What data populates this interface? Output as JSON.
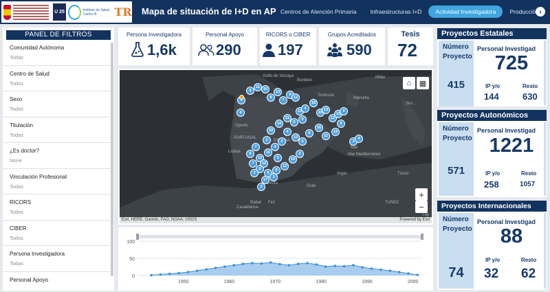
{
  "header": {
    "title": "Mapa de situación de I+D en AP",
    "logos": {
      "u25": "U 25",
      "institute": "Instituto de Salud Carlos III",
      "tr": "TR"
    },
    "nav": [
      {
        "label": "Centros de Atención Primaria",
        "active": false
      },
      {
        "label": "Infraestructuras I+D",
        "active": false
      },
      {
        "label": "Actividad Investigadora",
        "active": true
      },
      {
        "label": "Producción",
        "active": false
      }
    ],
    "accent": "#3fa6e0",
    "bar_color": "#13335f"
  },
  "filters": {
    "title": "PANEL DE FILTROS",
    "items": [
      {
        "label": "Comunidad Autónoma",
        "value": "Todas"
      },
      {
        "label": "Centro de Salud",
        "value": "Todos"
      },
      {
        "label": "Sexo",
        "value": "Todos"
      },
      {
        "label": "Titulación",
        "value": "Todas"
      },
      {
        "label": "¿Es doctor?",
        "value": "None"
      },
      {
        "label": "Vinculación Profesional",
        "value": "Todas"
      },
      {
        "label": "RICORS",
        "value": "Todos"
      },
      {
        "label": "CIBER",
        "value": "Todos"
      },
      {
        "label": "Persona Investigadora",
        "value": "Todas"
      },
      {
        "label": "Personal Apoyo",
        "value": ""
      }
    ]
  },
  "kpis": [
    {
      "label": "Persona Investigadora",
      "value": "1,6k",
      "icon": "flask-icon"
    },
    {
      "label": "Personal Apoyo",
      "value": "290",
      "icon": "people-icon"
    },
    {
      "label": "RICORS o CIBER",
      "value": "197",
      "icon": "user-icon"
    },
    {
      "label": "Grupos Acreditados",
      "value": "590",
      "icon": "group-icon"
    },
    {
      "label": "Tesis",
      "value": "72"
    }
  ],
  "map": {
    "labels": [
      "Burdeos",
      "Toulouse",
      "Marsella",
      "Milán",
      "Oporto",
      "Lisboa",
      "Mar Mediterráneo",
      "Argel",
      "Túnez",
      "Rabat",
      "Casablanca",
      "Fez",
      "Orán",
      "Ceuta",
      "PORTUGAL",
      "ESPAÑA",
      "Mar",
      "Trip",
      "Golfo de Vizcaya",
      "TUNEZ",
      "Sici..."
    ],
    "attribution": "Esri, HERE, Garmin, FAO, NOAA, USGS",
    "powered": "Powered by Esri",
    "clusters": [
      "3",
      "9",
      "11",
      "10",
      "8",
      "13",
      "7",
      "9",
      "12",
      "12",
      "4",
      "18",
      "15",
      "13",
      "12",
      "10",
      "9",
      "8",
      "14",
      "11",
      "16",
      "6",
      "5",
      "13",
      "4",
      "2",
      "4",
      "11",
      "12",
      "7",
      "6",
      "8",
      "9",
      "13",
      "10",
      "2",
      "7",
      "1",
      "4",
      "22",
      "14",
      "21",
      "6",
      "5",
      "3",
      "4",
      "12",
      "5",
      "5",
      "17",
      "3",
      "3",
      "3"
    ],
    "zoom_in": "+",
    "zoom_out": "−"
  },
  "timeline": {
    "x_ticks": [
      "1950",
      "1960",
      "1970",
      "1980",
      "1990",
      "2000"
    ],
    "y_ticks": [
      "100",
      "50",
      "0"
    ]
  },
  "chart_data": {
    "type": "area",
    "x": [
      1943,
      1945,
      1947,
      1949,
      1951,
      1953,
      1955,
      1957,
      1959,
      1961,
      1963,
      1965,
      1967,
      1969,
      1971,
      1973,
      1975,
      1977,
      1979,
      1981,
      1983,
      1985,
      1987,
      1989,
      1991,
      1993,
      1995,
      1997,
      1999,
      2001
    ],
    "values": [
      1,
      3,
      5,
      7,
      10,
      14,
      18,
      22,
      26,
      30,
      34,
      36,
      35,
      38,
      33,
      30,
      34,
      36,
      32,
      26,
      28,
      27,
      30,
      24,
      20,
      17,
      14,
      10,
      6,
      2
    ],
    "ylim": [
      0,
      100
    ],
    "xlim": [
      1940,
      2002
    ]
  },
  "projects": [
    {
      "title": "Proyectos Estatales",
      "num_label_1": "Número",
      "num_label_2": "Proyecto",
      "count": "415",
      "person_label": "Personal Investigad",
      "person_value": "725",
      "ip_label": "IP y/o",
      "ip_value": "144",
      "rest_label": "Resto",
      "rest_value": "630"
    },
    {
      "title": "Proyectos Autonómicos",
      "num_label_1": "Número",
      "num_label_2": "Proyecto",
      "count": "571",
      "person_label": "Personal Investigad",
      "person_value": "1221",
      "ip_label": "IP y/o",
      "ip_value": "258",
      "rest_label": "Resto",
      "rest_value": "1057"
    },
    {
      "title": "Proyectos Internacionales",
      "num_label_1": "Número",
      "num_label_2": "Proyecto",
      "count": "74",
      "person_label": "Personal Investigad",
      "person_value": "88",
      "ip_label": "IP y/o",
      "ip_value": "32",
      "rest_label": "Resto",
      "rest_value": "62"
    }
  ]
}
